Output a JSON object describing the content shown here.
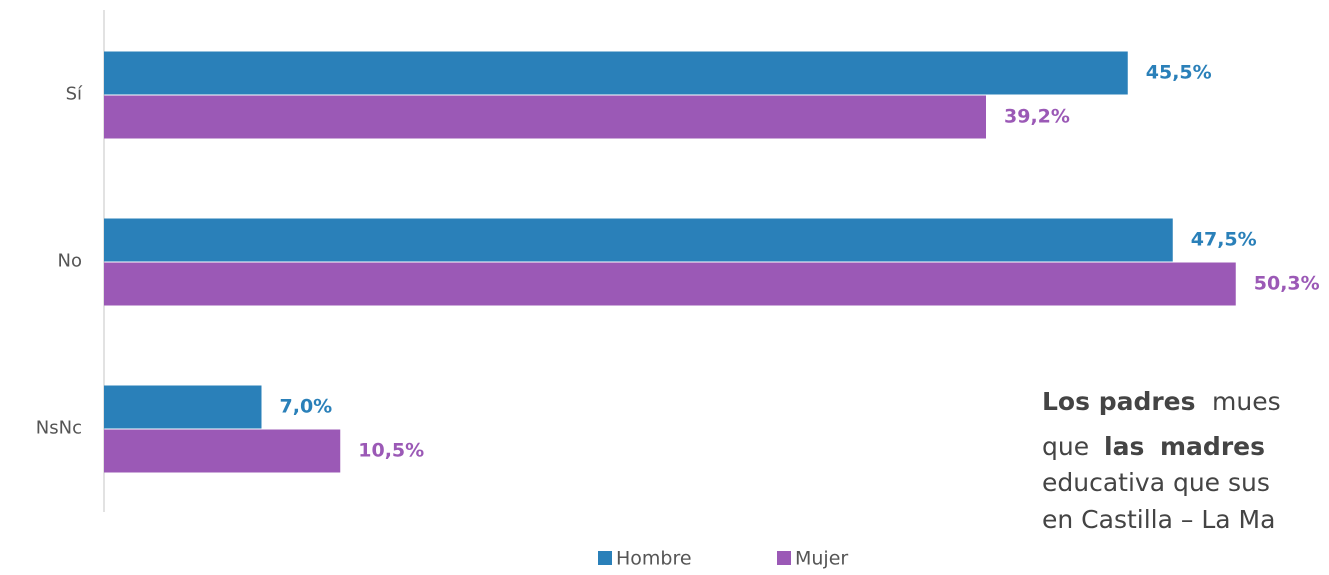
{
  "chart_data": {
    "type": "barh",
    "categories": [
      "Sí",
      "No",
      "NsNc"
    ],
    "series": [
      {
        "name": "Hombre",
        "color": "#2a80b9",
        "values": [
          45.5,
          47.5,
          7.0
        ],
        "value_labels": [
          "45,5%",
          "47,5%",
          "7,0%"
        ]
      },
      {
        "name": "Mujer",
        "color": "#9b59b6",
        "values": [
          39.2,
          50.3,
          10.5
        ],
        "value_labels": [
          "39,2%",
          "50,3%",
          "10,5%"
        ]
      }
    ],
    "xlim": [
      0,
      54
    ],
    "legend": "bottom",
    "annotation": {
      "lines": [
        [
          {
            "text": "Los padres",
            "bold": true,
            "color": "#2a80b9"
          },
          {
            "text": "mues"
          }
        ],
        [
          {
            "text": "que"
          },
          {
            "text": "las",
            "bold": true,
            "color": "#9b59b6"
          },
          {
            "text": "madres",
            "bold": true,
            "color": "#9b59b6"
          }
        ],
        [
          {
            "text": "educativa que sus"
          }
        ],
        [
          {
            "text": "en Castilla – La Ma"
          }
        ]
      ]
    }
  }
}
